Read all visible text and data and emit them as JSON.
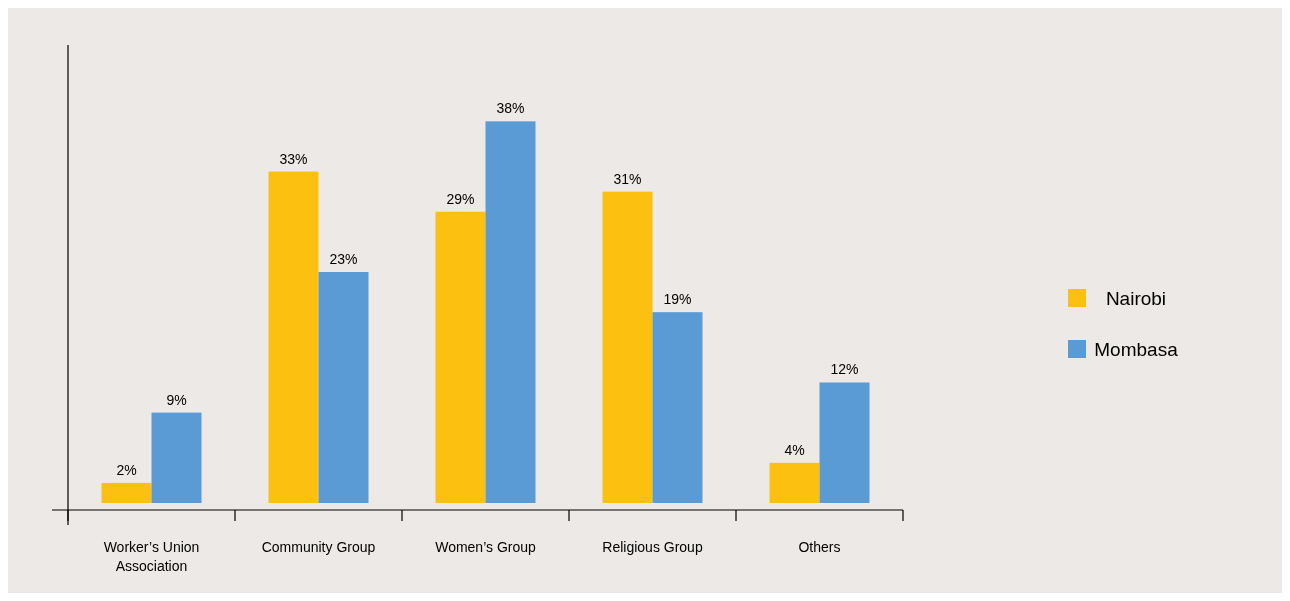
{
  "chart_data": {
    "type": "bar",
    "categories": [
      "Worker’s Union Association",
      "Community Group",
      "Women’s Group",
      "Religious Group",
      "Others"
    ],
    "series": [
      {
        "name": "Nairobi",
        "color": "#fcc010",
        "values": [
          2,
          33,
          29,
          31,
          4
        ],
        "value_labels": [
          "2%",
          "33%",
          "29%",
          "31%",
          "4%"
        ]
      },
      {
        "name": "Mombasa",
        "color": "#5b9bd5",
        "values": [
          9,
          23,
          38,
          19,
          12
        ],
        "value_labels": [
          "9%",
          "23%",
          "38%",
          "19%",
          "12%"
        ]
      }
    ],
    "legend": "right"
  }
}
